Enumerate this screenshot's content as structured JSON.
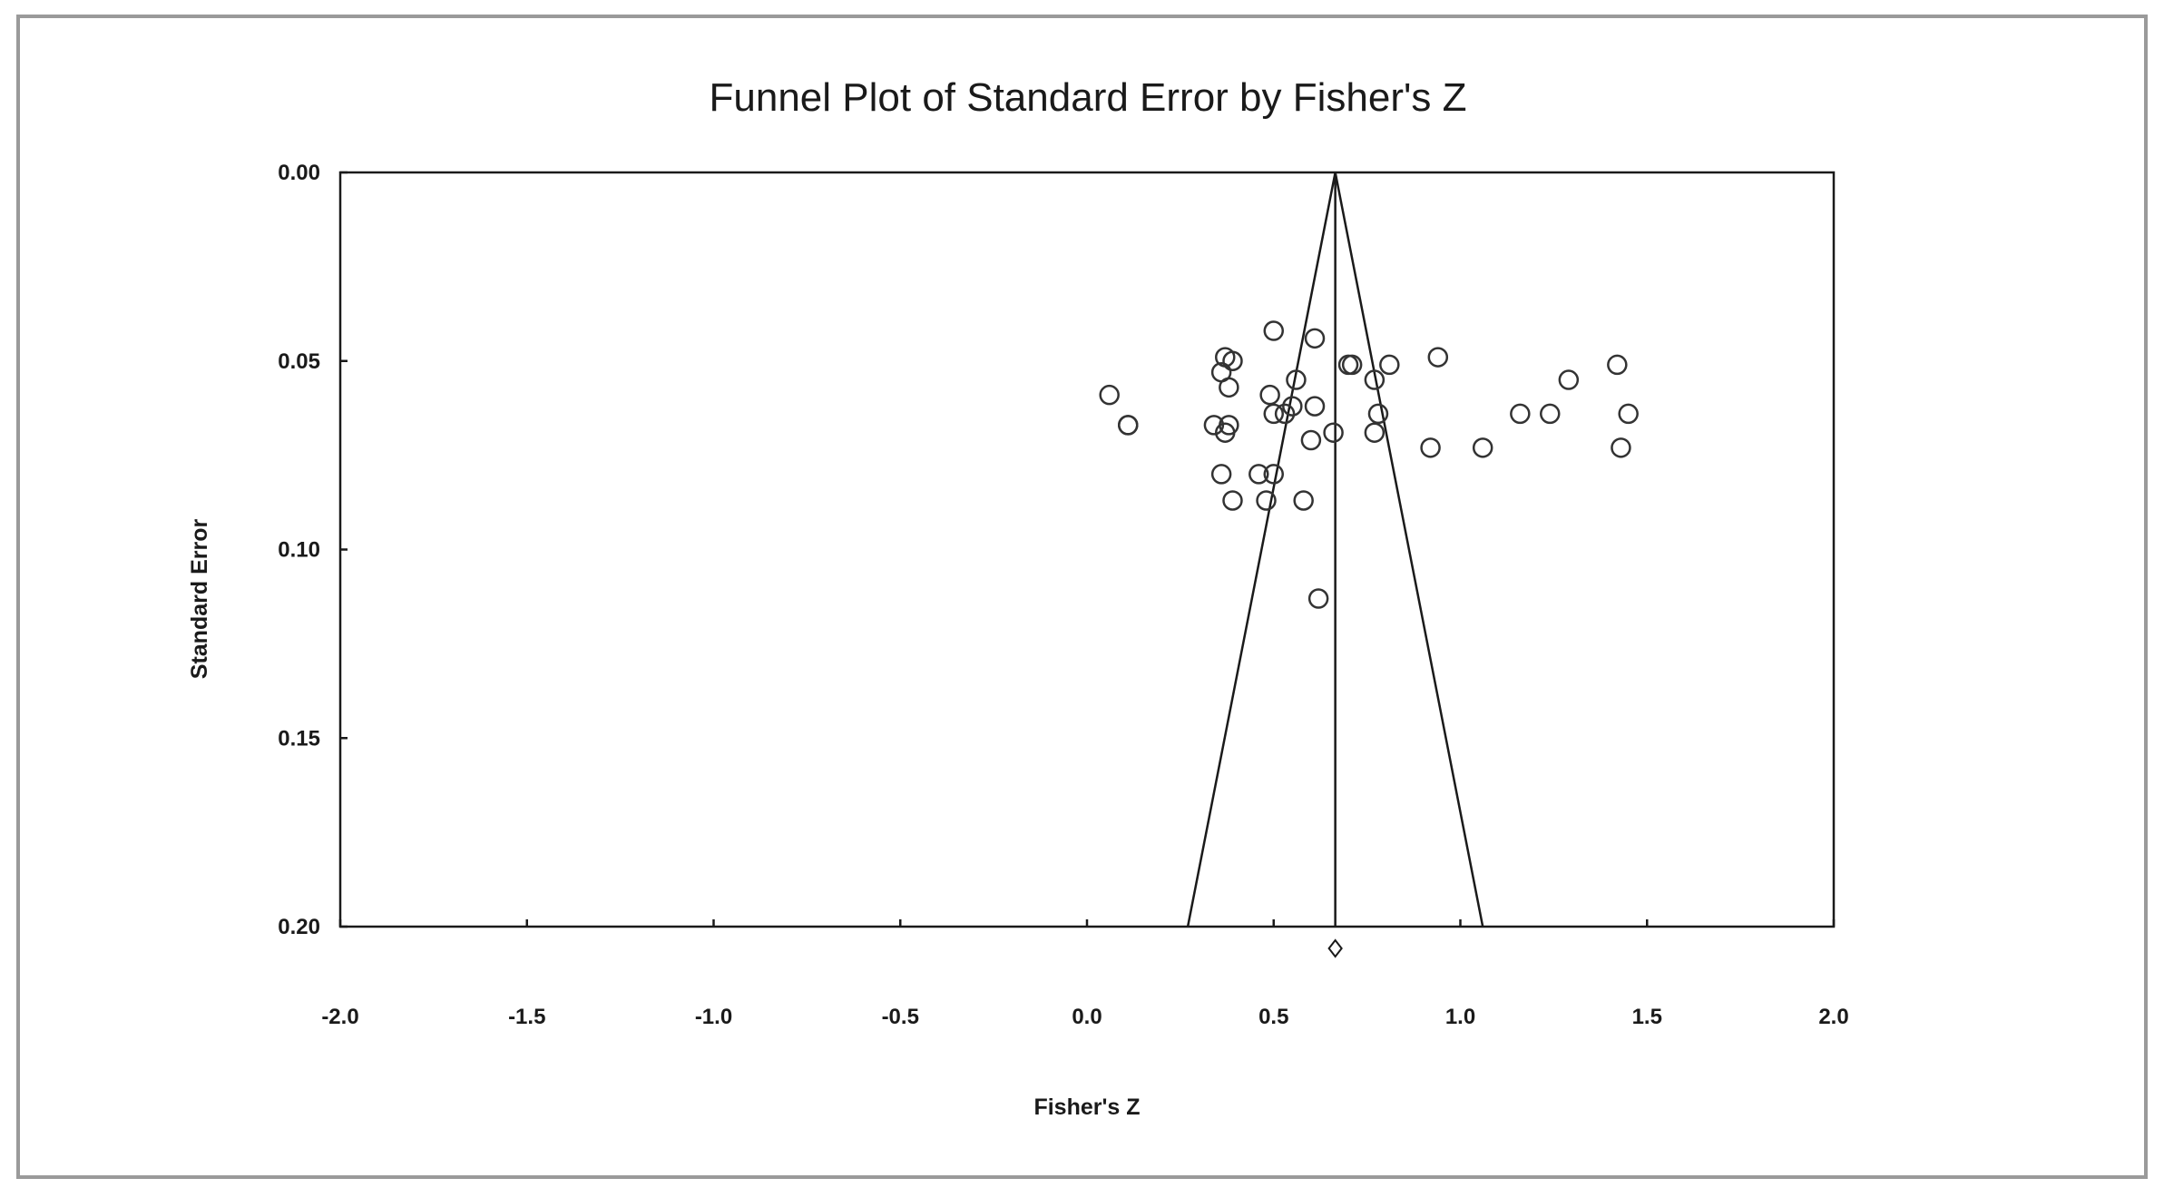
{
  "chart_data": {
    "type": "scatter",
    "title": "Funnel Plot of Standard Error by Fisher's Z",
    "xlabel": "Fisher's Z",
    "ylabel": "Standard Error",
    "xlim": [
      -2.0,
      2.0
    ],
    "ylim": [
      0.0,
      0.2
    ],
    "y_inverted": true,
    "x_ticks": [
      "-2.0",
      "-1.5",
      "-1.0",
      "-0.5",
      "0.0",
      "0.5",
      "1.0",
      "1.5",
      "2.0"
    ],
    "y_ticks": [
      "0.00",
      "0.05",
      "0.10",
      "0.15",
      "0.20"
    ],
    "grid": false,
    "summary_effect": 0.665,
    "funnel": {
      "apex": [
        0.665,
        0.0
      ],
      "bottom_left": [
        0.27,
        0.2
      ],
      "bottom_right": [
        1.06,
        0.2
      ]
    },
    "points": [
      {
        "x": 0.06,
        "y": 0.059
      },
      {
        "x": 0.11,
        "y": 0.067
      },
      {
        "x": 0.11,
        "y": 0.067
      },
      {
        "x": 0.34,
        "y": 0.067
      },
      {
        "x": 0.36,
        "y": 0.053
      },
      {
        "x": 0.37,
        "y": 0.049
      },
      {
        "x": 0.39,
        "y": 0.05
      },
      {
        "x": 0.38,
        "y": 0.057
      },
      {
        "x": 0.37,
        "y": 0.069
      },
      {
        "x": 0.38,
        "y": 0.067
      },
      {
        "x": 0.36,
        "y": 0.08
      },
      {
        "x": 0.39,
        "y": 0.087
      },
      {
        "x": 0.5,
        "y": 0.042
      },
      {
        "x": 0.49,
        "y": 0.059
      },
      {
        "x": 0.5,
        "y": 0.064
      },
      {
        "x": 0.56,
        "y": 0.055
      },
      {
        "x": 0.55,
        "y": 0.062
      },
      {
        "x": 0.53,
        "y": 0.064
      },
      {
        "x": 0.46,
        "y": 0.08
      },
      {
        "x": 0.5,
        "y": 0.08
      },
      {
        "x": 0.48,
        "y": 0.087
      },
      {
        "x": 0.61,
        "y": 0.044
      },
      {
        "x": 0.61,
        "y": 0.062
      },
      {
        "x": 0.6,
        "y": 0.071
      },
      {
        "x": 0.66,
        "y": 0.069
      },
      {
        "x": 0.58,
        "y": 0.087
      },
      {
        "x": 0.62,
        "y": 0.113
      },
      {
        "x": 0.7,
        "y": 0.051
      },
      {
        "x": 0.71,
        "y": 0.051
      },
      {
        "x": 0.81,
        "y": 0.051
      },
      {
        "x": 0.77,
        "y": 0.055
      },
      {
        "x": 0.78,
        "y": 0.064
      },
      {
        "x": 0.77,
        "y": 0.069
      },
      {
        "x": 0.94,
        "y": 0.049
      },
      {
        "x": 0.92,
        "y": 0.073
      },
      {
        "x": 1.06,
        "y": 0.073
      },
      {
        "x": 1.16,
        "y": 0.064
      },
      {
        "x": 1.24,
        "y": 0.064
      },
      {
        "x": 1.29,
        "y": 0.055
      },
      {
        "x": 1.42,
        "y": 0.051
      },
      {
        "x": 1.45,
        "y": 0.064
      },
      {
        "x": 1.43,
        "y": 0.073
      }
    ]
  }
}
